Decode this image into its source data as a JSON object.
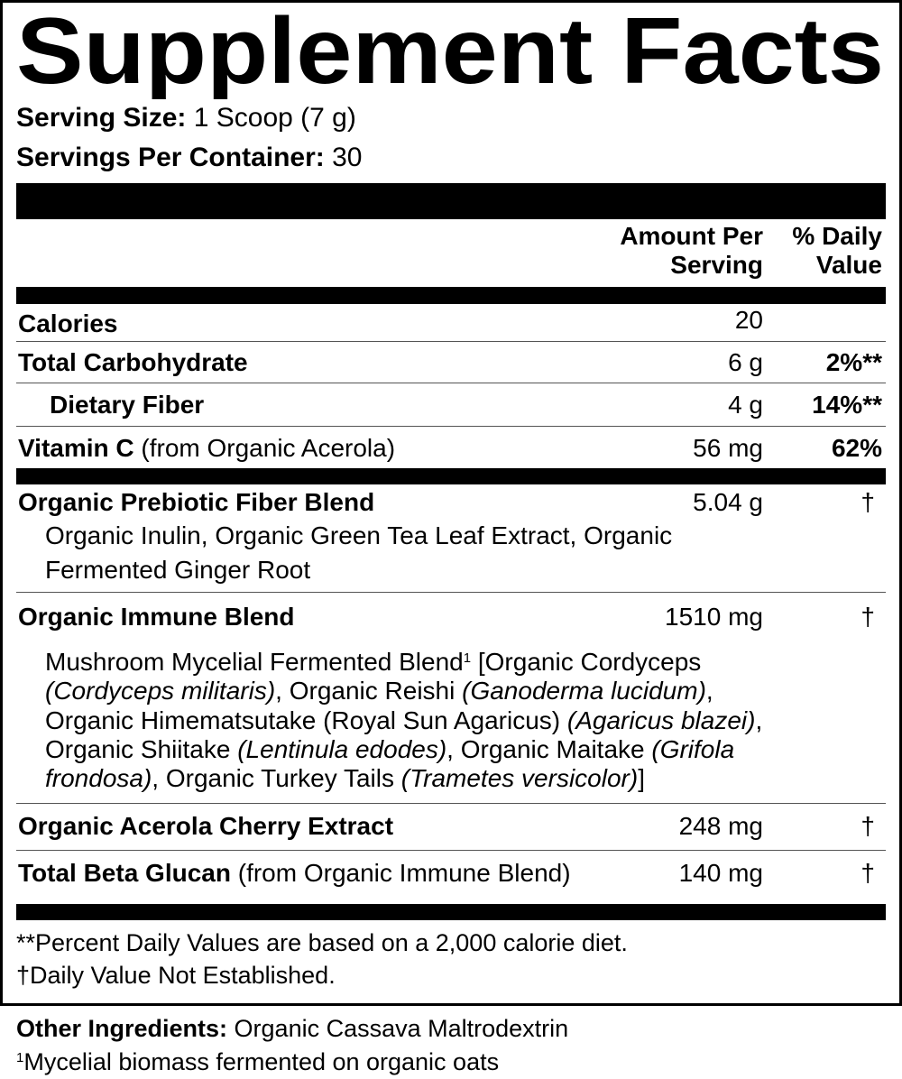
{
  "title": "Supplement Facts",
  "serving_size": {
    "label": "Serving Size:",
    "value": "1 Scoop (7 g)"
  },
  "servings_per_container": {
    "label": "Servings Per Container:",
    "value": "30"
  },
  "header": {
    "amount_line1": "Amount Per",
    "amount_line2": "Serving",
    "dv_line1": "% Daily",
    "dv_line2": "Value"
  },
  "rows": [
    {
      "name": "Calories",
      "amount": "20",
      "dv": ""
    },
    {
      "name": "Total Carbohydrate",
      "amount": "6 g",
      "dv": "2%**"
    },
    {
      "name": "Dietary Fiber",
      "amount": "4 g",
      "dv": "14%**"
    },
    {
      "name": "Vitamin C",
      "qualifier": "(from Organic Acerola)",
      "amount": "56 mg",
      "dv": "62%"
    }
  ],
  "blends": [
    {
      "name": "Organic Prebiotic Fiber Blend",
      "amount": "5.04 g",
      "dv": "†",
      "lines": [
        "Organic Inulin, Organic Green Tea Leaf Extract, Organic",
        "Fermented Ginger Root"
      ]
    },
    {
      "name": "Organic Immune Blend",
      "amount": "1510 mg",
      "dv": "†",
      "sub": {
        "l1a": "Mushroom Mycelial Fermented Blend",
        "sup": "1",
        "l1b": " [Organic Cordyceps",
        "l2a": "(Cordyceps militaris)",
        "l2b": ", Organic Reishi ",
        "l2c": "(Ganoderma lucidum)",
        "l2d": ",",
        "l3a": "Organic Himematsutake (Royal Sun Agaricus) ",
        "l3b": "(Agaricus blazei)",
        "l3c": ",",
        "l4a": "Organic Shiitake ",
        "l4b": "(Lentinula edodes)",
        "l4c": ", Organic Maitake ",
        "l4d": "(Grifola",
        "l5a": "frondosa)",
        "l5b": ", Organic Turkey Tails ",
        "l5c": "(Trametes versicolor)",
        "l5d": "]"
      }
    },
    {
      "name": "Organic Acerola Cherry Extract",
      "amount": "248 mg",
      "dv": "†"
    },
    {
      "name": "Total Beta Glucan",
      "qualifier": "(from Organic Immune Blend)",
      "amount": "140 mg",
      "dv": "†"
    }
  ],
  "footnotes": [
    "**Percent Daily Values are based on a 2,000 calorie diet.",
    "†Daily Value Not Established."
  ],
  "other_ingredients": {
    "label": "Other Ingredients:",
    "value": "Organic Cassava Maltrodextrin"
  },
  "ingredient_footnote": {
    "mark": "1",
    "text": "Mycelial biomass fermented on organic oats"
  }
}
